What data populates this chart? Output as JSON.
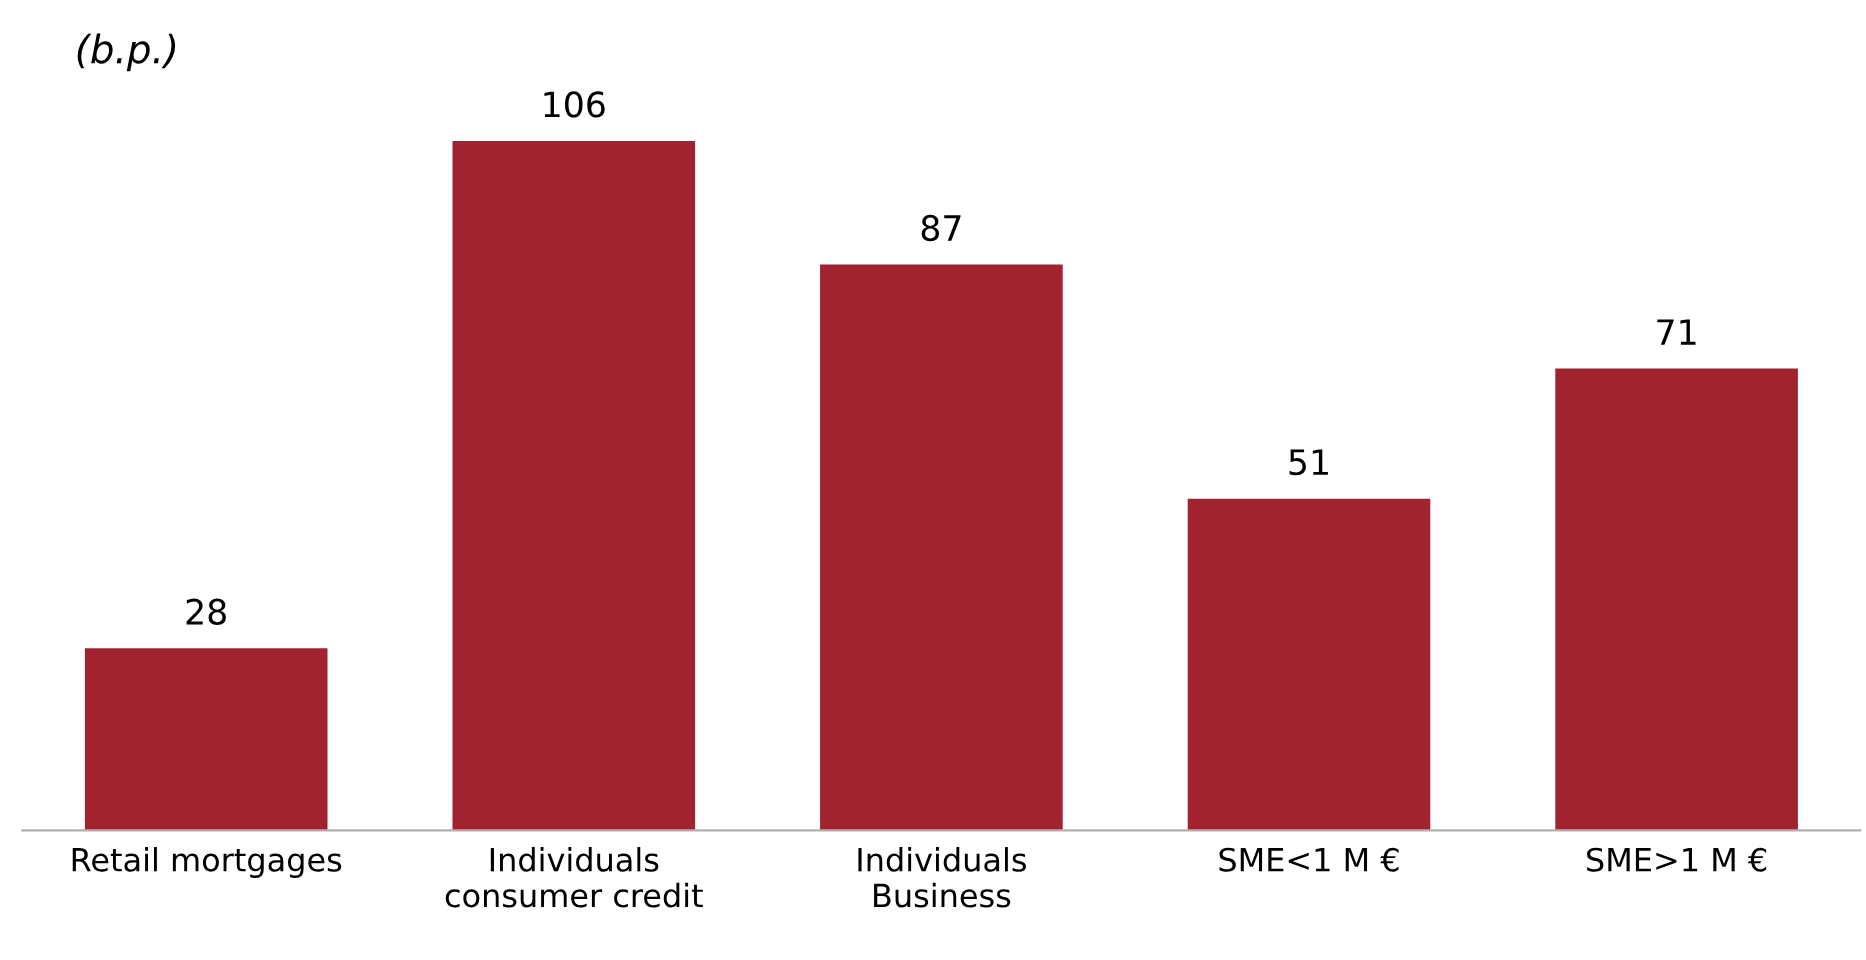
{
  "chart_data": {
    "type": "bar",
    "title": "(b.p.)",
    "categories": [
      "Retail mortgages",
      "Individuals\nconsumer credit",
      "Individuals\nBusiness",
      "SME<1 M €",
      "SME>1 M €"
    ],
    "values": [
      28,
      106,
      87,
      51,
      71
    ],
    "color": "#a0232f",
    "data_labels": true,
    "grid": false,
    "legend": false
  }
}
